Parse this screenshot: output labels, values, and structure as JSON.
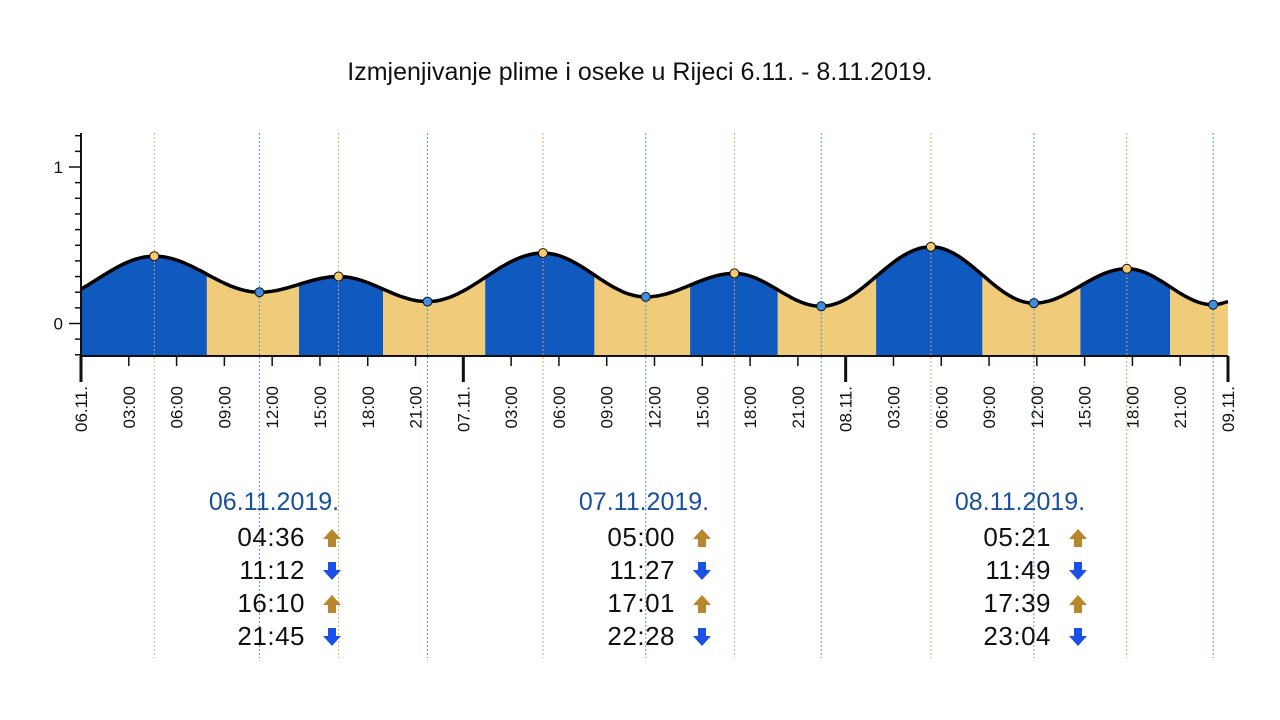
{
  "title": "Izmjenjivanje plime i oseke u Rijeci 6.11. - 8.11.2019.",
  "colors": {
    "rising": "#1059bf",
    "falling": "#f0cb7a",
    "curve": "#000000",
    "high_marker": "#f5c96d",
    "low_marker": "#3f8fe0",
    "high_line": "#f0a050",
    "low_line": "#3f8fe0",
    "date_text": "#1a4f9c",
    "arrow_up": "#b8862b",
    "arrow_down": "#1a4fe8"
  },
  "days": [
    {
      "date": "06.11.2019.",
      "events": [
        {
          "time": "04:36",
          "type": "high",
          "icon": "arrow-up-icon"
        },
        {
          "time": "11:12",
          "type": "low",
          "icon": "arrow-down-icon"
        },
        {
          "time": "16:10",
          "type": "high",
          "icon": "arrow-up-icon"
        },
        {
          "time": "21:45",
          "type": "low",
          "icon": "arrow-down-icon"
        }
      ]
    },
    {
      "date": "07.11.2019.",
      "events": [
        {
          "time": "05:00",
          "type": "high",
          "icon": "arrow-up-icon"
        },
        {
          "time": "11:27",
          "type": "low",
          "icon": "arrow-down-icon"
        },
        {
          "time": "17:01",
          "type": "high",
          "icon": "arrow-up-icon"
        },
        {
          "time": "22:28",
          "type": "low",
          "icon": "arrow-down-icon"
        }
      ]
    },
    {
      "date": "08.11.2019.",
      "events": [
        {
          "time": "05:21",
          "type": "high",
          "icon": "arrow-up-icon"
        },
        {
          "time": "11:49",
          "type": "low",
          "icon": "arrow-down-icon"
        },
        {
          "time": "17:39",
          "type": "high",
          "icon": "arrow-up-icon"
        },
        {
          "time": "23:04",
          "type": "low",
          "icon": "arrow-down-icon"
        }
      ]
    }
  ],
  "chart_data": {
    "type": "area",
    "title": "Izmjenjivanje plime i oseke u Rijeci 6.11. - 8.11.2019.",
    "xlabel": "",
    "ylabel": "",
    "y_ticks": [
      "0",
      "1"
    ],
    "ylim": [
      -0.2,
      1.2
    ],
    "x_range_hours": [
      0,
      72
    ],
    "x_tick_labels": [
      "06.11.",
      "03:00",
      "06:00",
      "09:00",
      "12:00",
      "15:00",
      "18:00",
      "21:00",
      "07.11.",
      "03:00",
      "06:00",
      "09:00",
      "12:00",
      "15:00",
      "18:00",
      "21:00",
      "08.11.",
      "03:00",
      "06:00",
      "09:00",
      "12:00",
      "15:00",
      "18:00",
      "21:00",
      "09.11."
    ],
    "start_level": 0.22,
    "end_level": 0.14,
    "extremes": [
      {
        "day": "06.11.",
        "time": "04:36",
        "type": "high",
        "level": 0.43
      },
      {
        "day": "06.11.",
        "time": "11:12",
        "type": "low",
        "level": 0.2
      },
      {
        "day": "06.11.",
        "time": "16:10",
        "type": "high",
        "level": 0.3
      },
      {
        "day": "06.11.",
        "time": "21:45",
        "type": "low",
        "level": 0.14
      },
      {
        "day": "07.11.",
        "time": "05:00",
        "type": "high",
        "level": 0.45
      },
      {
        "day": "07.11.",
        "time": "11:27",
        "type": "low",
        "level": 0.17
      },
      {
        "day": "07.11.",
        "time": "17:01",
        "type": "high",
        "level": 0.32
      },
      {
        "day": "07.11.",
        "time": "22:28",
        "type": "low",
        "level": 0.11
      },
      {
        "day": "08.11.",
        "time": "05:21",
        "type": "high",
        "level": 0.49
      },
      {
        "day": "08.11.",
        "time": "11:49",
        "type": "low",
        "level": 0.13
      },
      {
        "day": "08.11.",
        "time": "17:39",
        "type": "high",
        "level": 0.35
      },
      {
        "day": "08.11.",
        "time": "23:04",
        "type": "low",
        "level": 0.12
      }
    ],
    "legend": "none",
    "grid": false
  }
}
